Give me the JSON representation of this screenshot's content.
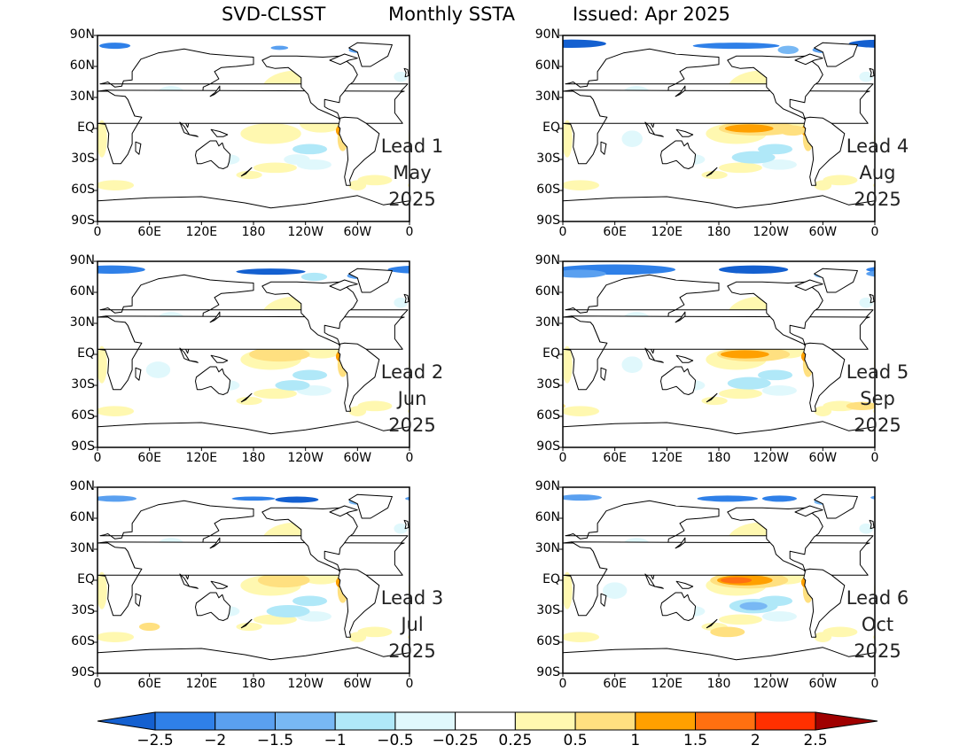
{
  "header": {
    "model": "SVD-CLSST",
    "product": "Monthly SSTA",
    "issued": "Issued: Apr 2025"
  },
  "axes": {
    "lat_labels": [
      "90N",
      "60N",
      "30N",
      "EQ",
      "30S",
      "60S",
      "90S"
    ],
    "lon_labels": [
      "0",
      "60E",
      "120E",
      "180",
      "120W",
      "60W",
      "0"
    ]
  },
  "panels": [
    {
      "lead": "Lead 1",
      "month": "May",
      "year": "2025",
      "enso_peak": 1.0
    },
    {
      "lead": "Lead 4",
      "month": "Aug",
      "year": "2025",
      "enso_peak": 1.2
    },
    {
      "lead": "Lead 2",
      "month": "Jun",
      "year": "2025",
      "enso_peak": 1.0
    },
    {
      "lead": "Lead 5",
      "month": "Sep",
      "year": "2025",
      "enso_peak": 1.3
    },
    {
      "lead": "Lead 3",
      "month": "Jul",
      "year": "2025",
      "enso_peak": 1.0
    },
    {
      "lead": "Lead 6",
      "month": "Oct",
      "year": "2025",
      "enso_peak": 1.6
    }
  ],
  "colorbar": {
    "labels": [
      "−2.5",
      "−2",
      "−1.5",
      "−1",
      "−0.5",
      "−0.25",
      "0.25",
      "0.5",
      "1",
      "1.5",
      "2",
      "2.5"
    ],
    "colors": [
      "#1460d0",
      "#2f80e8",
      "#5aa0f0",
      "#78b8f4",
      "#b0e8f8",
      "#e0f8fc",
      "#ffffff",
      "#fff8b0",
      "#ffe080",
      "#ffa000",
      "#ff7010",
      "#ff3000",
      "#a00000"
    ],
    "arrow_left_color": "#1460d0",
    "arrow_right_color": "#a00000"
  }
}
